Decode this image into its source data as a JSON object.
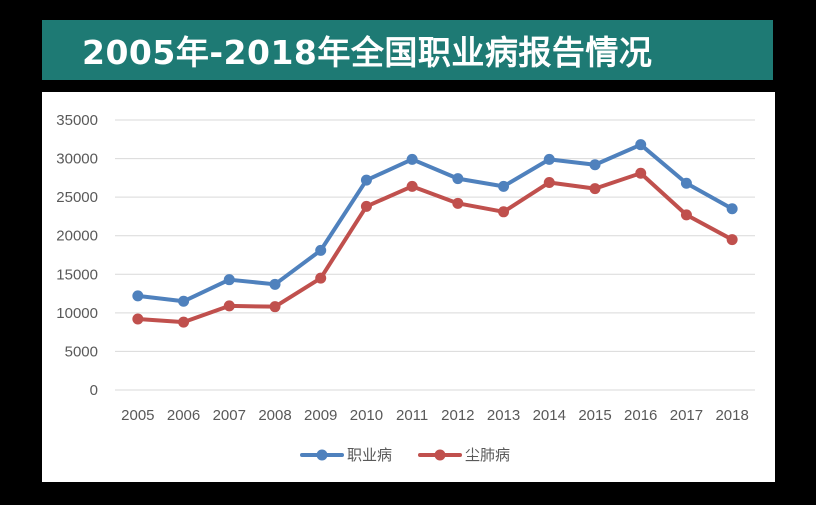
{
  "header": {
    "title": "2005年-2018年全国职业病报告情况"
  },
  "colors": {
    "title_bar": "#1e7a74",
    "series_1": "#4f81bd",
    "series_2": "#c0504d",
    "grid": "#d9d9d9"
  },
  "chart_data": {
    "type": "line",
    "title": "",
    "xlabel": "",
    "ylabel": "",
    "x": [
      "2005",
      "2006",
      "2007",
      "2008",
      "2009",
      "2010",
      "2011",
      "2012",
      "2013",
      "2014",
      "2015",
      "2016",
      "2017",
      "2018"
    ],
    "yticks": [
      "0",
      "5000",
      "10000",
      "15000",
      "20000",
      "25000",
      "30000",
      "35000"
    ],
    "ylim": [
      0,
      35000
    ],
    "grid": true,
    "legend_position": "bottom",
    "series": [
      {
        "name": "职业病",
        "color": "#4f81bd",
        "values": [
          12200,
          11500,
          14300,
          13700,
          18100,
          27200,
          29900,
          27400,
          26400,
          29900,
          29200,
          31800,
          26800,
          23500
        ]
      },
      {
        "name": "尘肺病",
        "color": "#c0504d",
        "values": [
          9200,
          8800,
          10900,
          10800,
          14500,
          23800,
          26400,
          24200,
          23100,
          26900,
          26100,
          28100,
          22700,
          19500
        ]
      }
    ]
  }
}
